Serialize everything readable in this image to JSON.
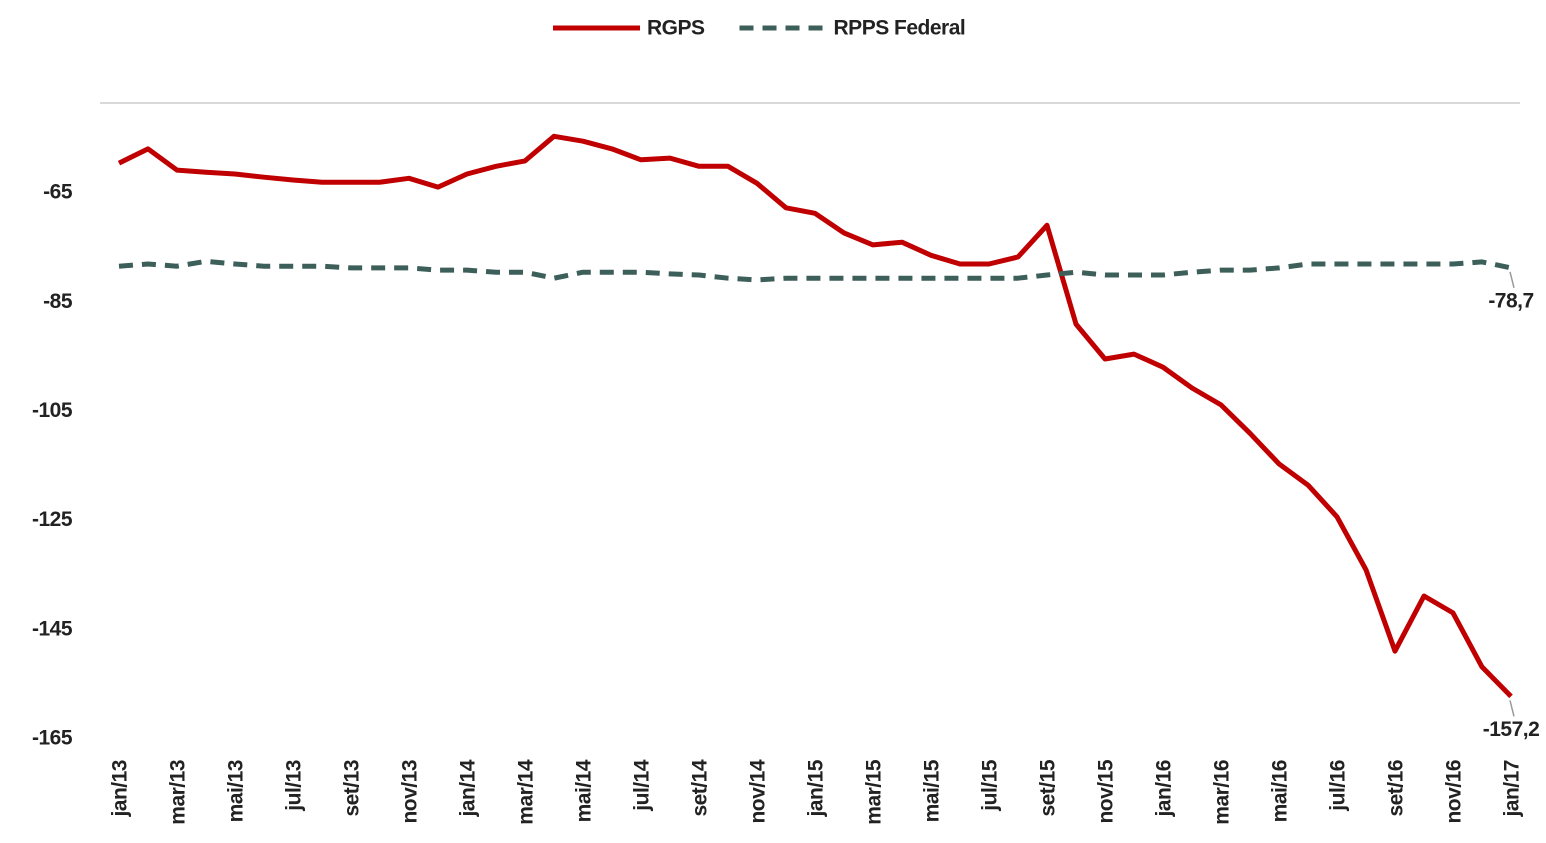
{
  "chart_data": {
    "type": "line",
    "categories": [
      "jan/13",
      null,
      "mar/13",
      null,
      "mai/13",
      null,
      "jul/13",
      null,
      "set/13",
      null,
      "nov/13",
      null,
      "jan/14",
      null,
      "mar/14",
      null,
      "mai/14",
      null,
      "jul/14",
      null,
      "set/14",
      null,
      "nov/14",
      null,
      "jan/15",
      null,
      "mar/15",
      null,
      "mai/15",
      null,
      "jul/15",
      null,
      "set/15",
      null,
      "nov/15",
      null,
      "jan/16",
      null,
      "mar/16",
      null,
      "mai/16",
      null,
      "jul/16",
      null,
      "set/16",
      null,
      "nov/16",
      null,
      "jan/17"
    ],
    "series": [
      {
        "name": "RGPS",
        "color": "#c00000",
        "dash": false,
        "values": [
          -59.5,
          -56.9,
          -60.8,
          -61.2,
          -61.5,
          -62.1,
          -62.6,
          -63.0,
          -63.0,
          -63.0,
          -62.3,
          -63.9,
          -61.5,
          -60.1,
          -59.1,
          -54.6,
          -55.5,
          -56.9,
          -58.9,
          -58.6,
          -60.1,
          -60.1,
          -63.2,
          -67.7,
          -68.7,
          -72.3,
          -74.5,
          -74.0,
          -76.4,
          -78.0,
          -78.0,
          -76.7,
          -70.9,
          -89.0,
          -95.4,
          -94.5,
          -96.9,
          -100.7,
          -103.8,
          -109.0,
          -114.6,
          -118.5,
          -124.3,
          -134.0,
          -148.9,
          -138.8,
          -141.9,
          -151.8,
          -157.2
        ],
        "value_labels": [
          null,
          null,
          null,
          null,
          null,
          null,
          null,
          null,
          null,
          null,
          null,
          null,
          null,
          null,
          null,
          null,
          null,
          null,
          null,
          null,
          null,
          null,
          null,
          null,
          null,
          null,
          null,
          null,
          null,
          null,
          null,
          null,
          null,
          null,
          null,
          null,
          null,
          null,
          null,
          null,
          null,
          null,
          null,
          null,
          null,
          null,
          null,
          null,
          "-157,2"
        ]
      },
      {
        "name": "RPPS Federal",
        "color": "#3d5f5a",
        "dash": true,
        "values": [
          -78.4,
          -78.0,
          -78.4,
          -77.5,
          -78.0,
          -78.4,
          -78.4,
          -78.4,
          -78.7,
          -78.7,
          -78.7,
          -79.1,
          -79.1,
          -79.5,
          -79.5,
          -80.6,
          -79.5,
          -79.5,
          -79.5,
          -79.8,
          -80.0,
          -80.6,
          -80.9,
          -80.6,
          -80.6,
          -80.6,
          -80.6,
          -80.6,
          -80.6,
          -80.6,
          -80.6,
          -80.6,
          -80.0,
          -79.5,
          -80.0,
          -80.0,
          -80.0,
          -79.5,
          -79.1,
          -79.1,
          -78.7,
          -78.0,
          -78.0,
          -78.0,
          -78.0,
          -78.0,
          -78.0,
          -77.6,
          -78.7
        ],
        "value_labels": [
          null,
          null,
          null,
          null,
          null,
          null,
          null,
          null,
          null,
          null,
          null,
          null,
          null,
          null,
          null,
          null,
          null,
          null,
          null,
          null,
          null,
          null,
          null,
          null,
          null,
          null,
          null,
          null,
          null,
          null,
          null,
          null,
          null,
          null,
          null,
          null,
          null,
          null,
          null,
          null,
          null,
          null,
          null,
          null,
          null,
          null,
          null,
          null,
          "-78,7"
        ]
      }
    ],
    "ylim": [
      -165,
      -48.5
    ],
    "yticks": [
      -65,
      -85,
      -105,
      -125,
      -145,
      -165
    ],
    "grid": false,
    "legend": "top"
  }
}
